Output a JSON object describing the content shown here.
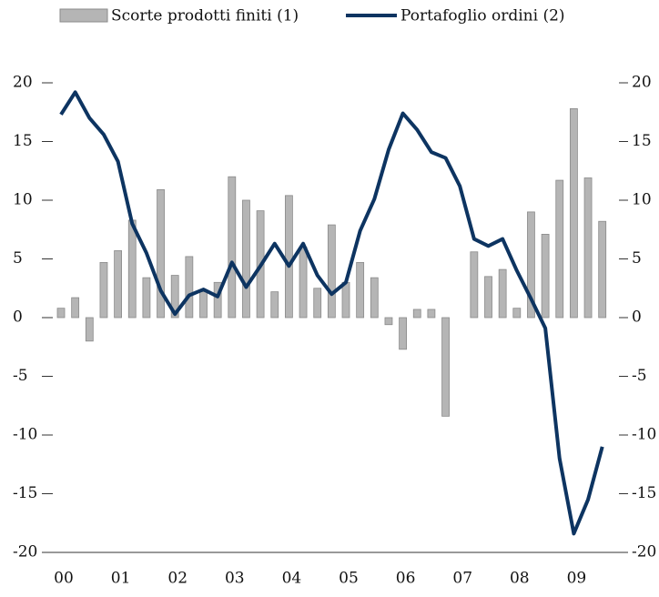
{
  "chart_data": {
    "type": "bar-line",
    "categories": [
      "00",
      null,
      null,
      null,
      "01",
      null,
      null,
      null,
      "02",
      null,
      null,
      null,
      "03",
      null,
      null,
      null,
      "04",
      null,
      null,
      null,
      "05",
      null,
      null,
      null,
      "06",
      null,
      null,
      null,
      "07",
      null,
      null,
      null,
      "08",
      null,
      null,
      null,
      "09",
      null,
      null
    ],
    "series": [
      {
        "name": "Scorte prodotti finiti (1)",
        "type": "bar",
        "color": "#b5b5b5",
        "values": [
          0.8,
          1.7,
          -2.0,
          4.7,
          5.7,
          8.3,
          3.4,
          10.9,
          3.6,
          5.2,
          2.2,
          3.0,
          12.0,
          10.0,
          9.1,
          2.2,
          10.4,
          6.0,
          2.5,
          7.9,
          3.0,
          4.7,
          3.4,
          -0.6,
          -2.7,
          0.7,
          0.7,
          -8.4,
          0,
          5.6,
          3.5,
          4.1,
          0.8,
          9.0,
          7.1,
          11.7,
          17.8,
          11.9,
          8.2
        ]
      },
      {
        "name": "Portafoglio ordini (2)",
        "type": "line",
        "color": "#0d3461",
        "axis": "y2",
        "values": [
          17.3,
          19.2,
          17.0,
          15.6,
          13.3,
          8.0,
          5.5,
          2.3,
          0.3,
          1.9,
          2.4,
          1.8,
          4.7,
          2.6,
          4.4,
          6.3,
          4.4,
          6.3,
          3.6,
          2.0,
          3.0,
          7.4,
          10.1,
          14.3,
          17.4,
          16.0,
          14.1,
          13.6,
          11.2,
          6.7,
          6.1,
          6.7,
          4.0,
          1.6,
          -0.9,
          -12.0,
          -18.4,
          -15.5,
          -11.0
        ]
      }
    ],
    "ylim": [
      -20,
      20
    ],
    "yticks": [
      -20,
      -15,
      -10,
      -5,
      0,
      5,
      10,
      15,
      20
    ],
    "y2lim": [
      -20,
      20
    ],
    "y2ticks": [
      -20,
      -15,
      -10,
      -5,
      0,
      5,
      10,
      15,
      20
    ],
    "grid": false,
    "legend": "top"
  }
}
